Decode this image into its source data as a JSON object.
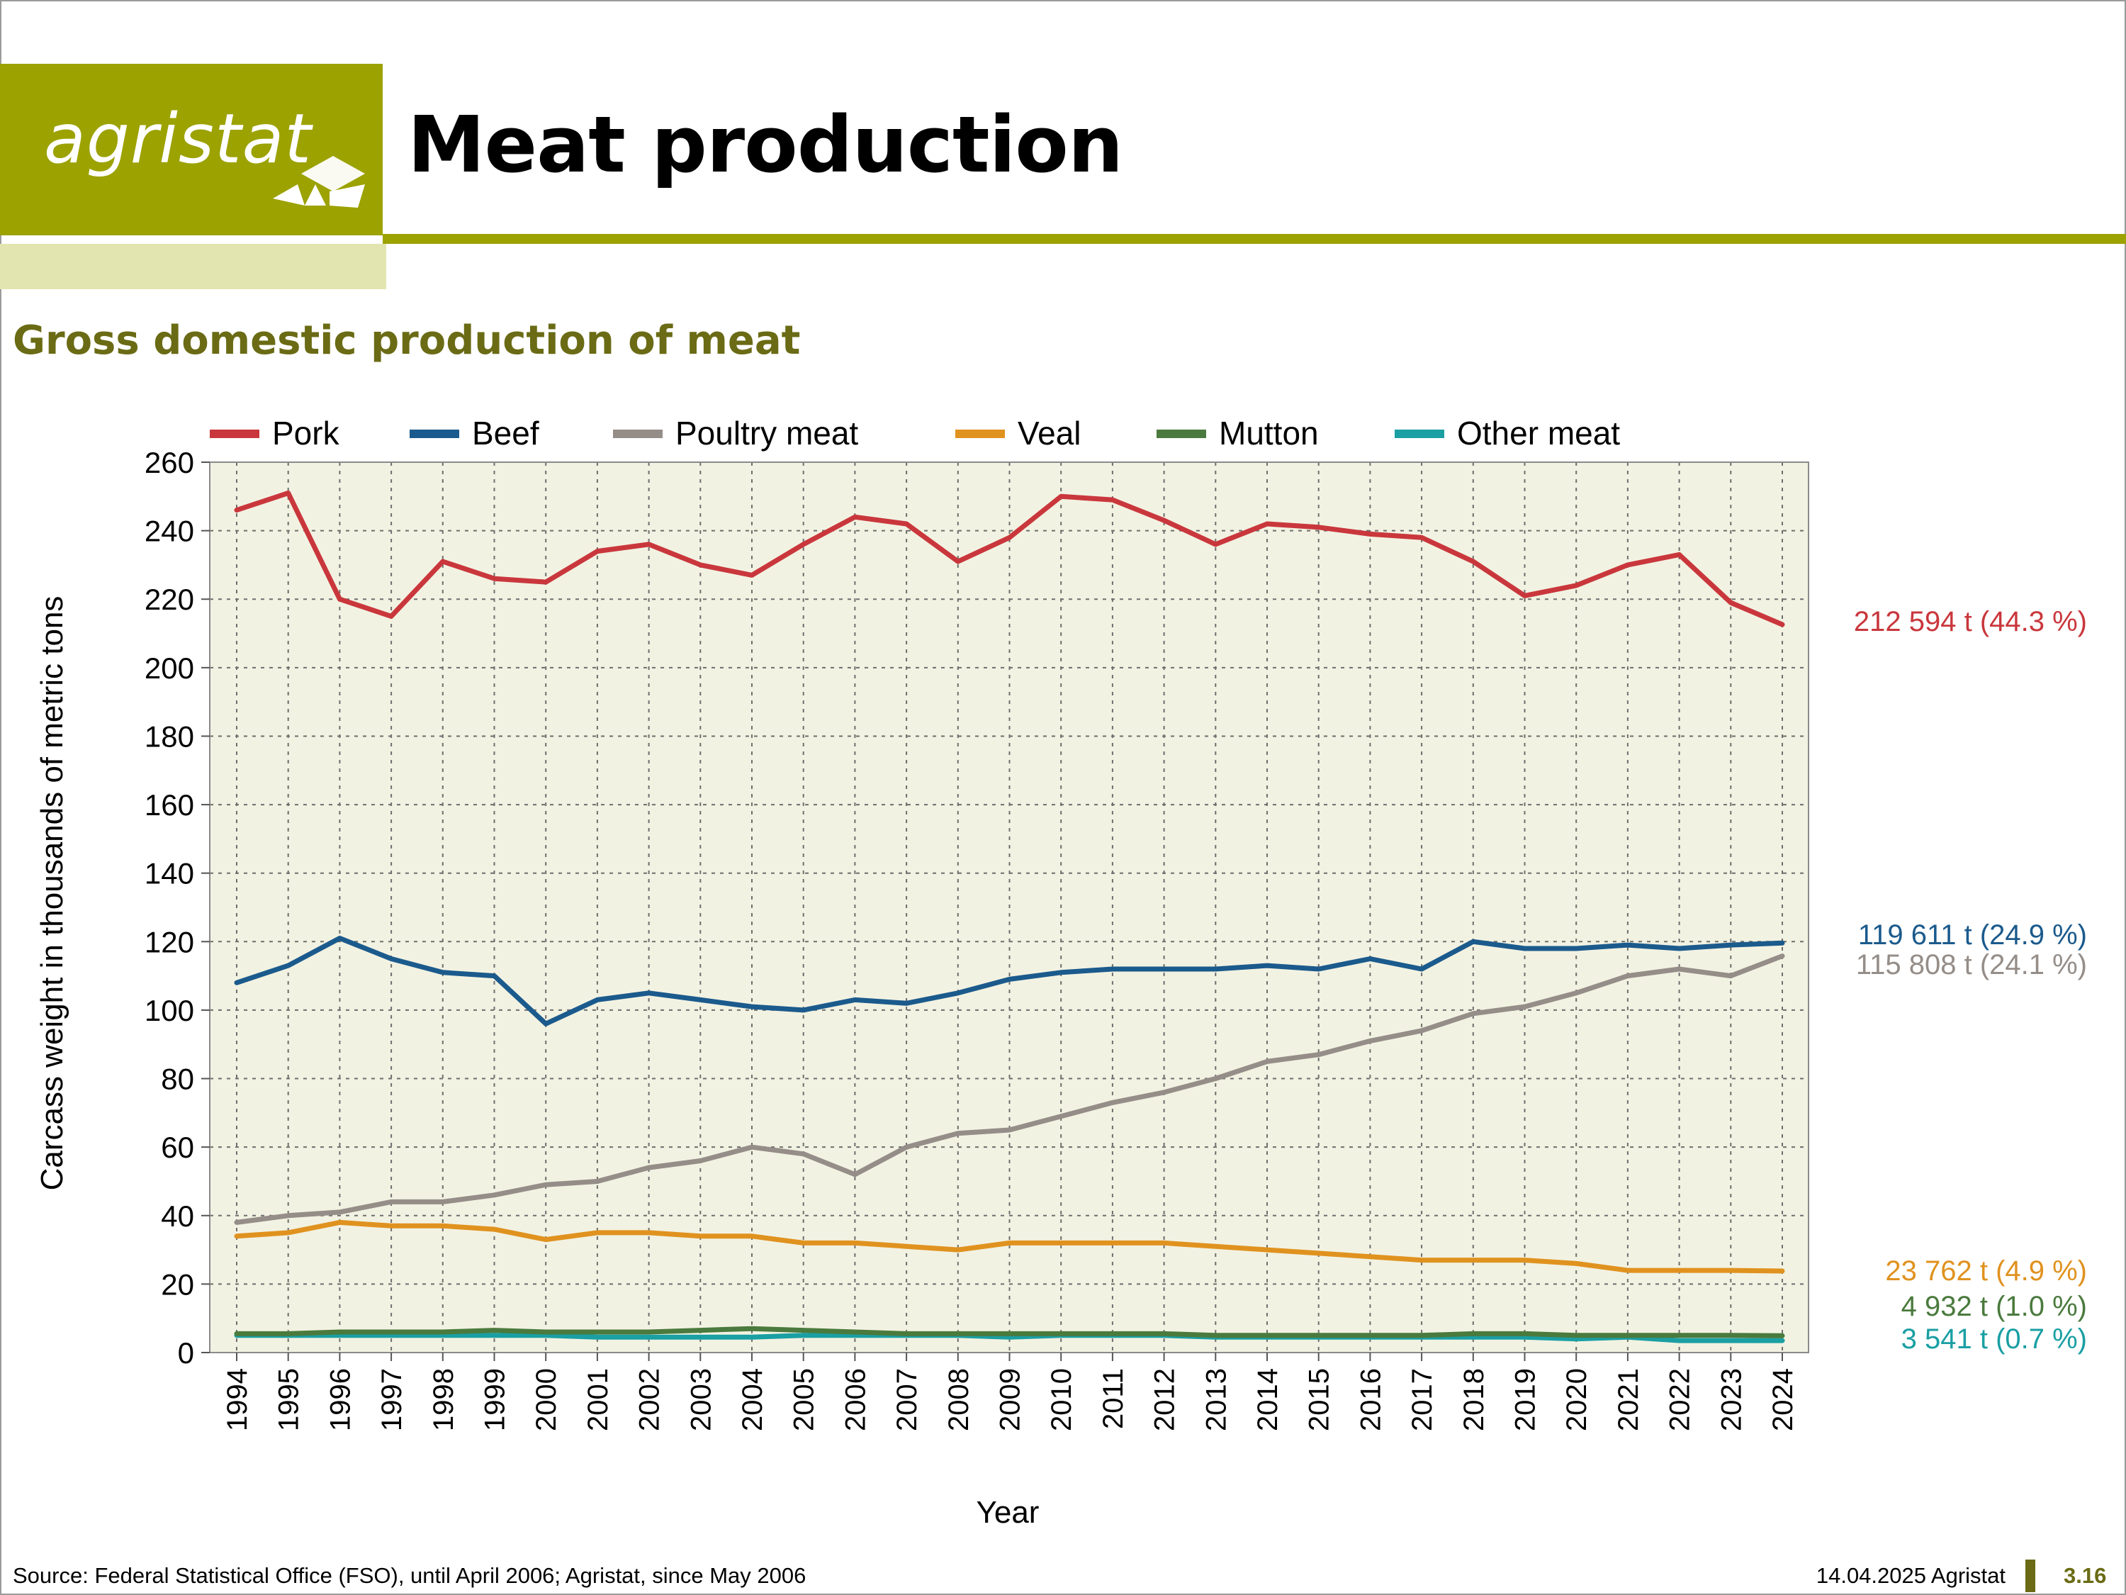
{
  "header": {
    "logo_text": "agristat",
    "title": "Meat production",
    "brand_color": "#9ca200"
  },
  "subtitle": "Gross domestic production of meat",
  "footer": {
    "source": "Source: Federal Statistical Office (FSO), until April 2006; Agristat, since May 2006",
    "date": "14.04.2025 Agristat",
    "page": "3.16"
  },
  "chart_data": {
    "type": "line",
    "title": "",
    "xlabel": "Year",
    "ylabel": "Carcass weight in thousands of metric tons",
    "ylim": [
      0,
      260
    ],
    "yticks": [
      0,
      20,
      40,
      60,
      80,
      100,
      120,
      140,
      160,
      180,
      200,
      220,
      240,
      260
    ],
    "grid": true,
    "legend_position": "top",
    "categories": [
      "1994",
      "1995",
      "1996",
      "1997",
      "1998",
      "1999",
      "2000",
      "2001",
      "2002",
      "2003",
      "2004",
      "2005",
      "2006",
      "2007",
      "2008",
      "2009",
      "2010",
      "2011",
      "2012",
      "2013",
      "2014",
      "2015",
      "2016",
      "2017",
      "2018",
      "2019",
      "2020",
      "2021",
      "2022",
      "2023",
      "2024"
    ],
    "series": [
      {
        "name": "Pork",
        "color": "#c9373c",
        "end_label": "212 594 t (44.3 %)",
        "values": [
          246,
          251,
          220,
          215,
          231,
          226,
          225,
          234,
          236,
          230,
          227,
          236,
          244,
          242,
          231,
          238,
          250,
          249,
          243,
          236,
          242,
          241,
          239,
          238,
          231,
          221,
          224,
          230,
          233,
          219,
          212.6
        ]
      },
      {
        "name": "Beef",
        "color": "#1b5a8c",
        "end_label": "119 611 t (24.9 %)",
        "values": [
          108,
          113,
          121,
          115,
          111,
          110,
          96,
          103,
          105,
          103,
          101,
          100,
          103,
          102,
          105,
          109,
          111,
          112,
          112,
          112,
          113,
          112,
          115,
          112,
          120,
          118,
          118,
          119,
          118,
          119,
          119.6
        ]
      },
      {
        "name": "Poultry meat",
        "color": "#958d88",
        "end_label": "115 808 t (24.1 %)",
        "values": [
          38,
          40,
          41,
          44,
          44,
          46,
          49,
          50,
          54,
          56,
          60,
          58,
          52,
          60,
          64,
          65,
          69,
          73,
          76,
          80,
          85,
          87,
          91,
          94,
          99,
          101,
          105,
          110,
          112,
          110,
          115.8
        ]
      },
      {
        "name": "Veal",
        "color": "#e0921f",
        "end_label": "23 762 t (4.9 %)",
        "values": [
          34,
          35,
          38,
          37,
          37,
          36,
          33,
          35,
          35,
          34,
          34,
          32,
          32,
          31,
          30,
          32,
          32,
          32,
          32,
          31,
          30,
          29,
          28,
          27,
          27,
          27,
          26,
          24,
          24,
          24,
          23.8
        ]
      },
      {
        "name": "Mutton",
        "color": "#4a7a3d",
        "end_label": "4 932 t (1.0 %)",
        "values": [
          5.5,
          5.5,
          6,
          6,
          6,
          6.5,
          6,
          6,
          6,
          6.5,
          7,
          6.5,
          6,
          5.5,
          5.5,
          5.5,
          5.5,
          5.5,
          5.5,
          5,
          5,
          5,
          5,
          5,
          5.5,
          5.5,
          5,
          5,
          5,
          5,
          4.9
        ]
      },
      {
        "name": "Other meat",
        "color": "#1a9fa3",
        "end_label": "3 541 t (0.7 %)",
        "values": [
          5,
          5,
          5,
          5,
          5,
          5,
          5,
          4.5,
          4.5,
          4.5,
          4.5,
          5,
          5,
          5,
          5,
          4.5,
          5,
          5,
          5,
          4.5,
          4.5,
          4.5,
          4.5,
          4.5,
          4.5,
          4.5,
          4,
          4.5,
          3.5,
          3.5,
          3.5
        ]
      }
    ]
  }
}
